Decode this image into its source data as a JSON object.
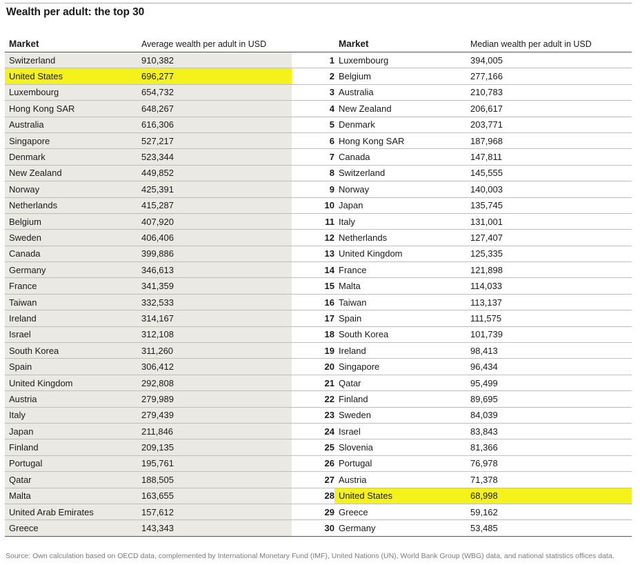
{
  "title": "Wealth per adult: the top 30",
  "headers": {
    "market_left": "Market",
    "average": "Average wealth per adult in USD",
    "market_right": "Market",
    "median": "Median wealth per adult in USD"
  },
  "rows": [
    {
      "rank": "1",
      "avg_market": "Switzerland",
      "avg_value": "910,382",
      "med_market": "Luxembourg",
      "med_value": "394,005"
    },
    {
      "rank": "2",
      "avg_market": "United States",
      "avg_value": "696,277",
      "med_market": "Belgium",
      "med_value": "277,166"
    },
    {
      "rank": "3",
      "avg_market": "Luxembourg",
      "avg_value": "654,732",
      "med_market": "Australia",
      "med_value": "210,783"
    },
    {
      "rank": "4",
      "avg_market": "Hong Kong SAR",
      "avg_value": "648,267",
      "med_market": "New Zealand",
      "med_value": "206,617"
    },
    {
      "rank": "5",
      "avg_market": "Australia",
      "avg_value": "616,306",
      "med_market": "Denmark",
      "med_value": "203,771"
    },
    {
      "rank": "6",
      "avg_market": "Singapore",
      "avg_value": "527,217",
      "med_market": "Hong Kong SAR",
      "med_value": "187,968"
    },
    {
      "rank": "7",
      "avg_market": "Denmark",
      "avg_value": "523,344",
      "med_market": "Canada",
      "med_value": "147,811"
    },
    {
      "rank": "8",
      "avg_market": "New Zealand",
      "avg_value": "449,852",
      "med_market": "Switzerland",
      "med_value": "145,555"
    },
    {
      "rank": "9",
      "avg_market": "Norway",
      "avg_value": "425,391",
      "med_market": "Norway",
      "med_value": "140,003"
    },
    {
      "rank": "10",
      "avg_market": "Netherlands",
      "avg_value": "415,287",
      "med_market": "Japan",
      "med_value": "135,745"
    },
    {
      "rank": "11",
      "avg_market": "Belgium",
      "avg_value": "407,920",
      "med_market": "Italy",
      "med_value": "131,001"
    },
    {
      "rank": "12",
      "avg_market": "Sweden",
      "avg_value": "406,406",
      "med_market": "Netherlands",
      "med_value": "127,407"
    },
    {
      "rank": "13",
      "avg_market": "Canada",
      "avg_value": "399,886",
      "med_market": "United Kingdom",
      "med_value": "125,335"
    },
    {
      "rank": "14",
      "avg_market": "Germany",
      "avg_value": "346,613",
      "med_market": "France",
      "med_value": "121,898"
    },
    {
      "rank": "15",
      "avg_market": "France",
      "avg_value": "341,359",
      "med_market": "Malta",
      "med_value": "114,033"
    },
    {
      "rank": "16",
      "avg_market": "Taiwan",
      "avg_value": "332,533",
      "med_market": "Taiwan",
      "med_value": "113,137"
    },
    {
      "rank": "17",
      "avg_market": "Ireland",
      "avg_value": "314,167",
      "med_market": "Spain",
      "med_value": "111,575"
    },
    {
      "rank": "18",
      "avg_market": "Israel",
      "avg_value": "312,108",
      "med_market": "South Korea",
      "med_value": "101,739"
    },
    {
      "rank": "19",
      "avg_market": "South Korea",
      "avg_value": "311,260",
      "med_market": "Ireland",
      "med_value": "98,413"
    },
    {
      "rank": "20",
      "avg_market": "Spain",
      "avg_value": "306,412",
      "med_market": "Singapore",
      "med_value": "96,434"
    },
    {
      "rank": "21",
      "avg_market": "United Kingdom",
      "avg_value": "292,808",
      "med_market": "Qatar",
      "med_value": "95,499"
    },
    {
      "rank": "22",
      "avg_market": "Austria",
      "avg_value": "279,989",
      "med_market": "Finland",
      "med_value": "89,695"
    },
    {
      "rank": "23",
      "avg_market": "Italy",
      "avg_value": "279,439",
      "med_market": "Sweden",
      "med_value": "84,039"
    },
    {
      "rank": "24",
      "avg_market": "Japan",
      "avg_value": "211,846",
      "med_market": "Israel",
      "med_value": "83,843"
    },
    {
      "rank": "25",
      "avg_market": "Finland",
      "avg_value": "209,135",
      "med_market": "Slovenia",
      "med_value": "81,366"
    },
    {
      "rank": "26",
      "avg_market": "Portugal",
      "avg_value": "195,761",
      "med_market": "Portugal",
      "med_value": "76,978"
    },
    {
      "rank": "27",
      "avg_market": "Qatar",
      "avg_value": "188,505",
      "med_market": "Austria",
      "med_value": "71,378"
    },
    {
      "rank": "28",
      "avg_market": "Malta",
      "avg_value": "163,655",
      "med_market": "United States",
      "med_value": "68,998"
    },
    {
      "rank": "29",
      "avg_market": "United Arab Emirates",
      "avg_value": "157,612",
      "med_market": "Greece",
      "med_value": "59,162"
    },
    {
      "rank": "30",
      "avg_market": "Greece",
      "avg_value": "143,343",
      "med_market": "Germany",
      "med_value": "53,485"
    }
  ],
  "highlight": {
    "color": "#f4f21a",
    "market": "United States"
  },
  "source": "Source: Own calculation based on OECD data, complemented by International Monetary Fund (IMF), United Nations (UN), World Bank Group (WBG) data, and national statistics offices data."
}
